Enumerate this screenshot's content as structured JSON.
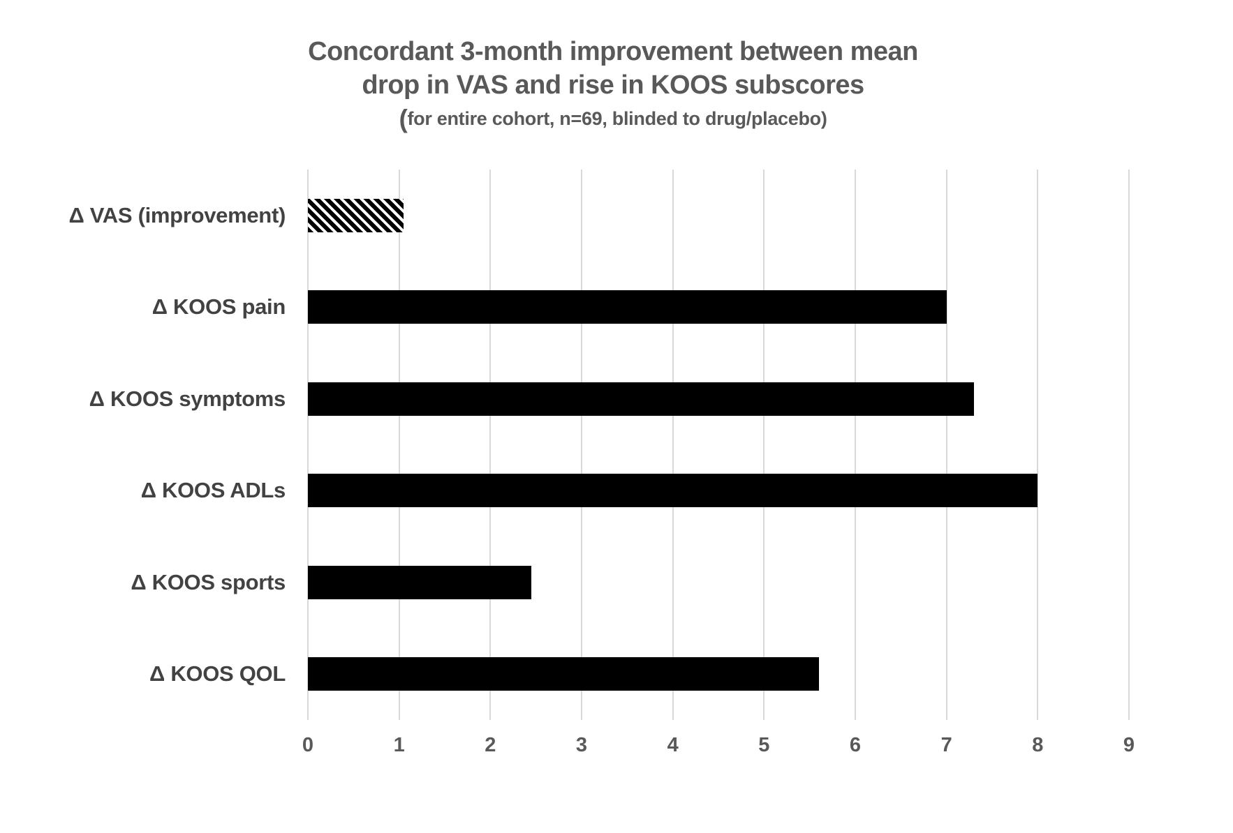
{
  "chart_data": {
    "type": "bar",
    "orientation": "horizontal",
    "title_line1": "Concordant 3-month improvement between mean",
    "title_line2": "drop in VAS and rise in KOOS subscores",
    "subtitle_paren": "(",
    "subtitle_rest": "for entire cohort, n=69, blinded to drug/placebo)",
    "categories": [
      "Δ VAS (improvement)",
      "Δ KOOS pain",
      "Δ KOOS symptoms",
      "Δ KOOS ADLs",
      "Δ KOOS sports",
      "Δ KOOS QOL"
    ],
    "values": [
      1.05,
      7.0,
      7.3,
      8.0,
      2.45,
      5.6
    ],
    "bar_styles": [
      "hatched",
      "solid",
      "solid",
      "solid",
      "solid",
      "solid"
    ],
    "xlabel": "",
    "ylabel": "",
    "xlim": [
      0,
      9
    ],
    "x_ticks": [
      0,
      1,
      2,
      3,
      4,
      5,
      6,
      7,
      8,
      9
    ],
    "grid": true,
    "legend": false,
    "colors": {
      "bar": "#000000",
      "gridline": "#d9d9d9",
      "title": "#595959",
      "category_label": "#424242",
      "tick_label": "#595959",
      "background": "#ffffff"
    }
  }
}
